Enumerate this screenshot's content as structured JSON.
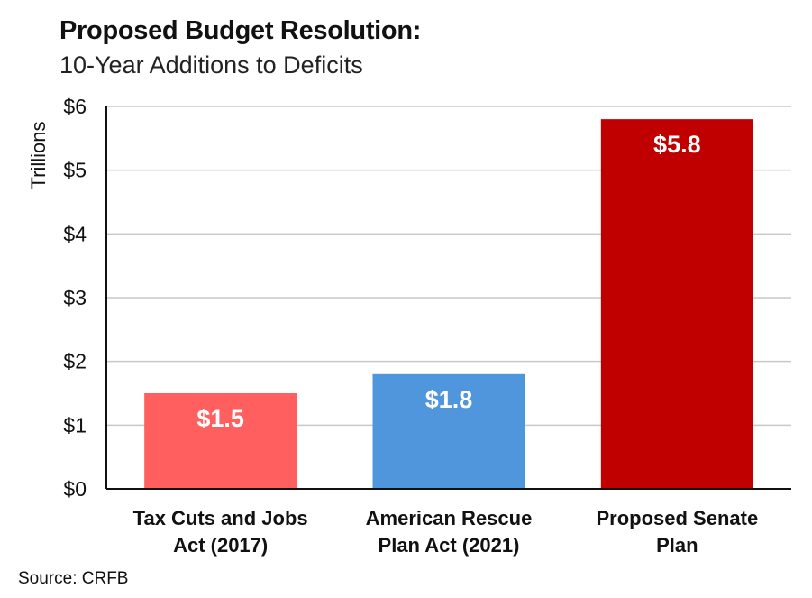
{
  "chart_data": {
    "type": "bar",
    "title": "Proposed Budget Resolution:",
    "subtitle": "10-Year Additions to Deficits",
    "ylabel": "Trillions",
    "xlabel": "",
    "categories": [
      [
        "Tax Cuts and Jobs",
        "Act (2017)"
      ],
      [
        "American Rescue",
        "Plan Act (2021)"
      ],
      [
        "Proposed Senate",
        "Plan"
      ]
    ],
    "values": [
      1.5,
      1.8,
      5.8
    ],
    "data_labels": [
      "$1.5",
      "$1.8",
      "$5.8"
    ],
    "colors": [
      "#ff5f5f",
      "#4f96dc",
      "#c00000"
    ],
    "ylim": [
      0,
      6
    ],
    "yticks": [
      0,
      1,
      2,
      3,
      4,
      5,
      6
    ],
    "ytick_labels": [
      "$0",
      "$1",
      "$2",
      "$3",
      "$4",
      "$5",
      "$6"
    ],
    "grid": true,
    "gridline_color": "#c8c8c8",
    "legend": "none"
  },
  "source": "Source: CRFB"
}
